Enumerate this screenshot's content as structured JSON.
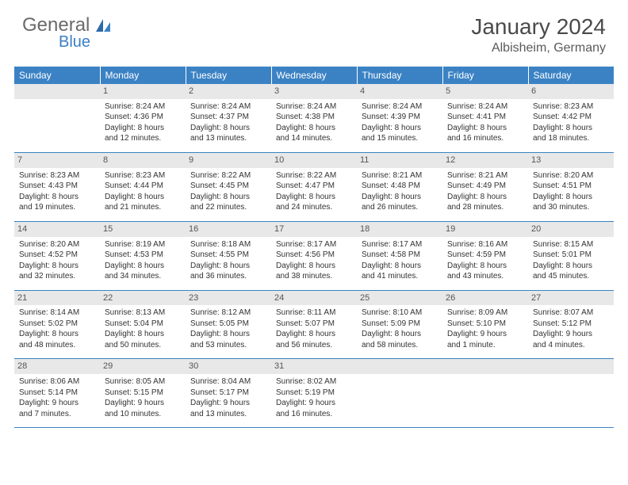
{
  "brand": {
    "part1": "General",
    "part2": "Blue"
  },
  "title": "January 2024",
  "location": "Albisheim, Germany",
  "colors": {
    "header_bg": "#3b82c4",
    "header_text": "#ffffff",
    "daynum_bg": "#e8e8e8",
    "row_divider": "#3b82c4",
    "brand_gray": "#6a6a6a",
    "brand_blue": "#3b7fc4"
  },
  "weekdays": [
    "Sunday",
    "Monday",
    "Tuesday",
    "Wednesday",
    "Thursday",
    "Friday",
    "Saturday"
  ],
  "weeks": [
    [
      null,
      {
        "n": "1",
        "sr": "Sunrise: 8:24 AM",
        "ss": "Sunset: 4:36 PM",
        "d1": "Daylight: 8 hours",
        "d2": "and 12 minutes."
      },
      {
        "n": "2",
        "sr": "Sunrise: 8:24 AM",
        "ss": "Sunset: 4:37 PM",
        "d1": "Daylight: 8 hours",
        "d2": "and 13 minutes."
      },
      {
        "n": "3",
        "sr": "Sunrise: 8:24 AM",
        "ss": "Sunset: 4:38 PM",
        "d1": "Daylight: 8 hours",
        "d2": "and 14 minutes."
      },
      {
        "n": "4",
        "sr": "Sunrise: 8:24 AM",
        "ss": "Sunset: 4:39 PM",
        "d1": "Daylight: 8 hours",
        "d2": "and 15 minutes."
      },
      {
        "n": "5",
        "sr": "Sunrise: 8:24 AM",
        "ss": "Sunset: 4:41 PM",
        "d1": "Daylight: 8 hours",
        "d2": "and 16 minutes."
      },
      {
        "n": "6",
        "sr": "Sunrise: 8:23 AM",
        "ss": "Sunset: 4:42 PM",
        "d1": "Daylight: 8 hours",
        "d2": "and 18 minutes."
      }
    ],
    [
      {
        "n": "7",
        "sr": "Sunrise: 8:23 AM",
        "ss": "Sunset: 4:43 PM",
        "d1": "Daylight: 8 hours",
        "d2": "and 19 minutes."
      },
      {
        "n": "8",
        "sr": "Sunrise: 8:23 AM",
        "ss": "Sunset: 4:44 PM",
        "d1": "Daylight: 8 hours",
        "d2": "and 21 minutes."
      },
      {
        "n": "9",
        "sr": "Sunrise: 8:22 AM",
        "ss": "Sunset: 4:45 PM",
        "d1": "Daylight: 8 hours",
        "d2": "and 22 minutes."
      },
      {
        "n": "10",
        "sr": "Sunrise: 8:22 AM",
        "ss": "Sunset: 4:47 PM",
        "d1": "Daylight: 8 hours",
        "d2": "and 24 minutes."
      },
      {
        "n": "11",
        "sr": "Sunrise: 8:21 AM",
        "ss": "Sunset: 4:48 PM",
        "d1": "Daylight: 8 hours",
        "d2": "and 26 minutes."
      },
      {
        "n": "12",
        "sr": "Sunrise: 8:21 AM",
        "ss": "Sunset: 4:49 PM",
        "d1": "Daylight: 8 hours",
        "d2": "and 28 minutes."
      },
      {
        "n": "13",
        "sr": "Sunrise: 8:20 AM",
        "ss": "Sunset: 4:51 PM",
        "d1": "Daylight: 8 hours",
        "d2": "and 30 minutes."
      }
    ],
    [
      {
        "n": "14",
        "sr": "Sunrise: 8:20 AM",
        "ss": "Sunset: 4:52 PM",
        "d1": "Daylight: 8 hours",
        "d2": "and 32 minutes."
      },
      {
        "n": "15",
        "sr": "Sunrise: 8:19 AM",
        "ss": "Sunset: 4:53 PM",
        "d1": "Daylight: 8 hours",
        "d2": "and 34 minutes."
      },
      {
        "n": "16",
        "sr": "Sunrise: 8:18 AM",
        "ss": "Sunset: 4:55 PM",
        "d1": "Daylight: 8 hours",
        "d2": "and 36 minutes."
      },
      {
        "n": "17",
        "sr": "Sunrise: 8:17 AM",
        "ss": "Sunset: 4:56 PM",
        "d1": "Daylight: 8 hours",
        "d2": "and 38 minutes."
      },
      {
        "n": "18",
        "sr": "Sunrise: 8:17 AM",
        "ss": "Sunset: 4:58 PM",
        "d1": "Daylight: 8 hours",
        "d2": "and 41 minutes."
      },
      {
        "n": "19",
        "sr": "Sunrise: 8:16 AM",
        "ss": "Sunset: 4:59 PM",
        "d1": "Daylight: 8 hours",
        "d2": "and 43 minutes."
      },
      {
        "n": "20",
        "sr": "Sunrise: 8:15 AM",
        "ss": "Sunset: 5:01 PM",
        "d1": "Daylight: 8 hours",
        "d2": "and 45 minutes."
      }
    ],
    [
      {
        "n": "21",
        "sr": "Sunrise: 8:14 AM",
        "ss": "Sunset: 5:02 PM",
        "d1": "Daylight: 8 hours",
        "d2": "and 48 minutes."
      },
      {
        "n": "22",
        "sr": "Sunrise: 8:13 AM",
        "ss": "Sunset: 5:04 PM",
        "d1": "Daylight: 8 hours",
        "d2": "and 50 minutes."
      },
      {
        "n": "23",
        "sr": "Sunrise: 8:12 AM",
        "ss": "Sunset: 5:05 PM",
        "d1": "Daylight: 8 hours",
        "d2": "and 53 minutes."
      },
      {
        "n": "24",
        "sr": "Sunrise: 8:11 AM",
        "ss": "Sunset: 5:07 PM",
        "d1": "Daylight: 8 hours",
        "d2": "and 56 minutes."
      },
      {
        "n": "25",
        "sr": "Sunrise: 8:10 AM",
        "ss": "Sunset: 5:09 PM",
        "d1": "Daylight: 8 hours",
        "d2": "and 58 minutes."
      },
      {
        "n": "26",
        "sr": "Sunrise: 8:09 AM",
        "ss": "Sunset: 5:10 PM",
        "d1": "Daylight: 9 hours",
        "d2": "and 1 minute."
      },
      {
        "n": "27",
        "sr": "Sunrise: 8:07 AM",
        "ss": "Sunset: 5:12 PM",
        "d1": "Daylight: 9 hours",
        "d2": "and 4 minutes."
      }
    ],
    [
      {
        "n": "28",
        "sr": "Sunrise: 8:06 AM",
        "ss": "Sunset: 5:14 PM",
        "d1": "Daylight: 9 hours",
        "d2": "and 7 minutes."
      },
      {
        "n": "29",
        "sr": "Sunrise: 8:05 AM",
        "ss": "Sunset: 5:15 PM",
        "d1": "Daylight: 9 hours",
        "d2": "and 10 minutes."
      },
      {
        "n": "30",
        "sr": "Sunrise: 8:04 AM",
        "ss": "Sunset: 5:17 PM",
        "d1": "Daylight: 9 hours",
        "d2": "and 13 minutes."
      },
      {
        "n": "31",
        "sr": "Sunrise: 8:02 AM",
        "ss": "Sunset: 5:19 PM",
        "d1": "Daylight: 9 hours",
        "d2": "and 16 minutes."
      },
      null,
      null,
      null
    ]
  ]
}
